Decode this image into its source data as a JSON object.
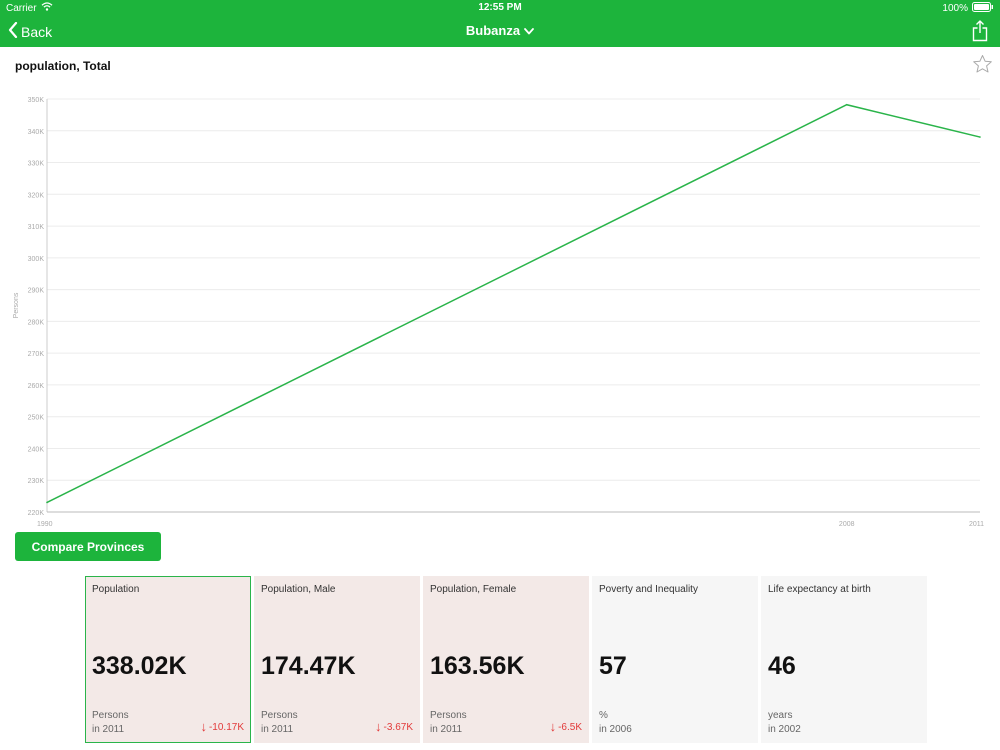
{
  "status_bar": {
    "carrier": "Carrier",
    "time": "12:55 PM",
    "battery": "100%"
  },
  "nav": {
    "back_label": "Back",
    "title": "Bubanza"
  },
  "chart_title": "population, Total",
  "colors": {
    "accent": "#1db43c",
    "line": "#2ab44a",
    "negative": "#e23a3a",
    "card_pink": "#f3e9e7",
    "card_grey": "#f6f6f6"
  },
  "chart_data": {
    "type": "line",
    "ylabel": "Persons",
    "ylim": [
      220000,
      350000
    ],
    "yticks": [
      220000,
      230000,
      240000,
      250000,
      260000,
      270000,
      280000,
      290000,
      300000,
      310000,
      320000,
      330000,
      340000,
      350000
    ],
    "ytick_labels": [
      "220K",
      "230K",
      "240K",
      "250K",
      "260K",
      "270K",
      "280K",
      "290K",
      "300K",
      "310K",
      "320K",
      "330K",
      "340K",
      "350K"
    ],
    "x_labels": [
      "1990",
      "2008",
      "2011"
    ],
    "series": [
      {
        "x": [
          "1990",
          "2008",
          "2011"
        ],
        "values": [
          223000,
          348200,
          338020
        ]
      }
    ],
    "grid": true
  },
  "compare_button": "Compare Provinces",
  "cards": [
    {
      "title": "Population",
      "value": "338.02K",
      "unit": "Persons",
      "year": "in 2011",
      "change": "-10.17K",
      "style": "pink",
      "selected": true
    },
    {
      "title": "Population, Male",
      "value": "174.47K",
      "unit": "Persons",
      "year": "in 2011",
      "change": "-3.67K",
      "style": "pink",
      "selected": false
    },
    {
      "title": "Population, Female",
      "value": "163.56K",
      "unit": "Persons",
      "year": "in 2011",
      "change": "-6.5K",
      "style": "pink",
      "selected": false
    },
    {
      "title": "Poverty and Inequality",
      "value": "57",
      "unit": "%",
      "year": "in 2006",
      "change": null,
      "style": "grey",
      "selected": false
    },
    {
      "title": "Life expectancy at birth",
      "value": "46",
      "unit": "years",
      "year": "in 2002",
      "change": null,
      "style": "grey",
      "selected": false
    }
  ],
  "icons": {
    "back": "chevron-left-icon",
    "title_dropdown": "chevron-down-icon",
    "share": "share-icon",
    "favorite": "star-icon",
    "change": "arrow-down-icon"
  }
}
